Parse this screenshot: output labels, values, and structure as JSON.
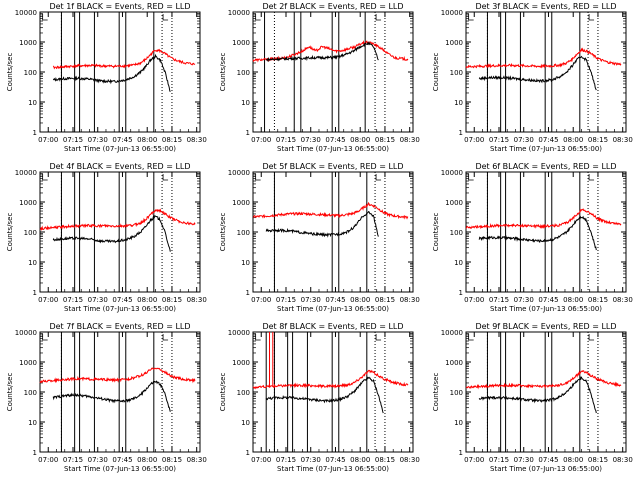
{
  "chart_data": [
    {
      "type": "line",
      "title": "Det 1f BLACK = Events, RED = LLD",
      "xlabel": "Start Time (07-Jun-13 06:55:00)",
      "ylabel": "Counts/sec",
      "ylog": true,
      "ylim": [
        1,
        10000
      ],
      "yticks": [
        "1",
        "10",
        "100",
        "1000",
        "10000"
      ],
      "xticks": [
        "07:00",
        "07:15",
        "07:30",
        "07:45",
        "08:00",
        "08:15",
        "08:30"
      ],
      "xlim_minutes": [
        0,
        97
      ],
      "series": [
        {
          "name": "LLD",
          "color": "#ff0000",
          "x": [
            8,
            15,
            22,
            30,
            37,
            45,
            52,
            57,
            61,
            64,
            67,
            70,
            73,
            76,
            79,
            82,
            85,
            88,
            91,
            94
          ],
          "y": [
            140,
            150,
            160,
            165,
            160,
            155,
            160,
            170,
            200,
            260,
            380,
            550,
            500,
            400,
            300,
            250,
            220,
            200,
            190,
            180
          ]
        },
        {
          "name": "Events",
          "color": "#000000",
          "x": [
            8,
            15,
            22,
            30,
            37,
            45,
            52,
            57,
            61,
            64,
            67,
            70,
            73,
            76,
            79
          ],
          "y": [
            55,
            60,
            62,
            58,
            50,
            48,
            55,
            70,
            100,
            150,
            250,
            330,
            250,
            90,
            22
          ]
        }
      ],
      "solid_lines": [
        13,
        21,
        24,
        33,
        48,
        52,
        69
      ],
      "dotted_lines": [
        13,
        74,
        80
      ]
    },
    {
      "type": "line",
      "title": "Det 2f BLACK = Events, RED = LLD",
      "xlabel": "Start Time (07-Jun-13 06:55:00)",
      "ylabel": "Counts/sec",
      "ylog": true,
      "ylim": [
        1,
        10000
      ],
      "yticks": [
        "1",
        "10",
        "100",
        "1000",
        "10000"
      ],
      "xticks": [
        "07:00",
        "07:15",
        "07:30",
        "07:45",
        "08:00",
        "08:15",
        "08:30"
      ],
      "xlim_minutes": [
        0,
        97
      ],
      "series": [
        {
          "name": "LLD",
          "color": "#ff0000",
          "x": [
            0,
            8,
            15,
            20,
            25,
            30,
            34,
            38,
            42,
            46,
            50,
            54,
            58,
            62,
            66,
            70,
            74,
            78,
            82,
            86,
            90,
            94
          ],
          "y": [
            250,
            260,
            280,
            300,
            380,
            500,
            700,
            500,
            700,
            600,
            500,
            520,
            600,
            700,
            900,
            1000,
            800,
            600,
            400,
            300,
            280,
            260
          ]
        },
        {
          "name": "Events",
          "color": "#000000",
          "x": [
            8,
            15,
            22,
            30,
            37,
            45,
            52,
            57,
            61,
            64,
            67,
            70,
            73,
            76
          ],
          "y": [
            260,
            270,
            280,
            290,
            300,
            300,
            320,
            400,
            500,
            650,
            800,
            900,
            700,
            250
          ]
        }
      ],
      "solid_lines": [
        7,
        25,
        29,
        48,
        52,
        68
      ],
      "dotted_lines": [
        13,
        74,
        80
      ]
    },
    {
      "type": "line",
      "title": "Det 3f BLACK = Events, RED = LLD",
      "xlabel": "Start Time (07-Jun-13 06:55:00)",
      "ylabel": "Counts/sec",
      "ylog": true,
      "ylim": [
        1,
        10000
      ],
      "yticks": [
        "1",
        "10",
        "100",
        "1000",
        "10000"
      ],
      "xticks": [
        "07:00",
        "07:15",
        "07:30",
        "07:45",
        "08:00",
        "08:15",
        "08:30"
      ],
      "xlim_minutes": [
        0,
        97
      ],
      "series": [
        {
          "name": "LLD",
          "color": "#ff0000",
          "x": [
            0,
            8,
            15,
            22,
            30,
            37,
            45,
            52,
            57,
            61,
            64,
            67,
            70,
            73,
            76,
            79,
            82,
            85,
            88,
            91,
            94
          ],
          "y": [
            150,
            155,
            160,
            165,
            165,
            160,
            155,
            160,
            170,
            200,
            260,
            380,
            550,
            500,
            400,
            300,
            250,
            220,
            200,
            190,
            180
          ]
        },
        {
          "name": "Events",
          "color": "#000000",
          "x": [
            8,
            15,
            22,
            30,
            37,
            45,
            52,
            57,
            61,
            64,
            67,
            70,
            73,
            76,
            79
          ],
          "y": [
            60,
            65,
            65,
            60,
            55,
            50,
            55,
            70,
            100,
            150,
            250,
            330,
            250,
            90,
            25
          ]
        }
      ],
      "solid_lines": [
        13,
        21,
        24,
        33,
        48,
        52,
        69
      ],
      "dotted_lines": [
        13,
        74,
        80
      ]
    },
    {
      "type": "line",
      "title": "Det 4f BLACK = Events, RED = LLD",
      "xlabel": "Start Time (07-Jun-13 06:55:00)",
      "ylabel": "Counts/sec",
      "ylog": true,
      "ylim": [
        1,
        10000
      ],
      "yticks": [
        "1",
        "10",
        "100",
        "1000",
        "10000"
      ],
      "xticks": [
        "07:00",
        "07:15",
        "07:30",
        "07:45",
        "08:00",
        "08:15",
        "08:30"
      ],
      "xlim_minutes": [
        0,
        97
      ],
      "series": [
        {
          "name": "LLD",
          "color": "#ff0000",
          "x": [
            0,
            8,
            15,
            22,
            30,
            37,
            45,
            52,
            57,
            61,
            64,
            67,
            70,
            73,
            76,
            79,
            82,
            85,
            88,
            91,
            94
          ],
          "y": [
            130,
            140,
            150,
            160,
            165,
            160,
            155,
            160,
            170,
            200,
            260,
            380,
            550,
            500,
            400,
            300,
            250,
            220,
            200,
            190,
            180
          ]
        },
        {
          "name": "Events",
          "color": "#000000",
          "x": [
            8,
            15,
            22,
            30,
            37,
            45,
            52,
            57,
            61,
            64,
            67,
            70,
            73,
            76,
            79
          ],
          "y": [
            55,
            60,
            62,
            58,
            50,
            48,
            55,
            70,
            100,
            150,
            250,
            330,
            250,
            90,
            22
          ]
        }
      ],
      "solid_lines": [
        13,
        21,
        24,
        33,
        48,
        52,
        69
      ],
      "dotted_lines": [
        13,
        74,
        80
      ]
    },
    {
      "type": "line",
      "title": "Det 5f BLACK = Events, RED = LLD",
      "xlabel": "Start Time (07-Jun-13 06:55:00)",
      "ylabel": "Counts/sec",
      "ylog": true,
      "ylim": [
        1,
        10000
      ],
      "yticks": [
        "1",
        "10",
        "100",
        "1000",
        "10000"
      ],
      "xticks": [
        "07:00",
        "07:15",
        "07:30",
        "07:45",
        "08:00",
        "08:15",
        "08:30"
      ],
      "xlim_minutes": [
        0,
        97
      ],
      "series": [
        {
          "name": "LLD",
          "color": "#ff0000",
          "x": [
            0,
            8,
            15,
            22,
            30,
            37,
            45,
            52,
            57,
            61,
            64,
            67,
            70,
            73,
            76,
            79,
            82,
            85,
            88,
            91,
            94
          ],
          "y": [
            320,
            340,
            370,
            400,
            410,
            390,
            370,
            350,
            380,
            420,
            500,
            650,
            850,
            750,
            600,
            450,
            380,
            350,
            330,
            320,
            310
          ]
        },
        {
          "name": "Events",
          "color": "#000000",
          "x": [
            8,
            15,
            22,
            30,
            37,
            45,
            52,
            57,
            61,
            64,
            67,
            70,
            73,
            76
          ],
          "y": [
            110,
            115,
            110,
            95,
            85,
            80,
            85,
            100,
            140,
            220,
            350,
            450,
            350,
            70
          ]
        }
      ],
      "solid_lines": [
        13,
        48,
        52,
        69
      ],
      "dotted_lines": [
        13,
        74,
        80
      ]
    },
    {
      "type": "line",
      "title": "Det 6f BLACK = Events, RED = LLD",
      "xlabel": "Start Time (07-Jun-13 06:55:00)",
      "ylabel": "Counts/sec",
      "ylog": true,
      "ylim": [
        1,
        10000
      ],
      "yticks": [
        "1",
        "10",
        "100",
        "1000",
        "10000"
      ],
      "xticks": [
        "07:00",
        "07:15",
        "07:30",
        "07:45",
        "08:00",
        "08:15",
        "08:30"
      ],
      "xlim_minutes": [
        0,
        97
      ],
      "series": [
        {
          "name": "LLD",
          "color": "#ff0000",
          "x": [
            0,
            8,
            15,
            22,
            30,
            37,
            45,
            52,
            57,
            61,
            64,
            67,
            70,
            73,
            76,
            79,
            82,
            85,
            88,
            91,
            94
          ],
          "y": [
            140,
            150,
            160,
            165,
            165,
            160,
            155,
            160,
            170,
            200,
            260,
            380,
            550,
            500,
            400,
            300,
            250,
            220,
            200,
            190,
            180
          ]
        },
        {
          "name": "Events",
          "color": "#000000",
          "x": [
            8,
            15,
            22,
            30,
            37,
            45,
            52,
            57,
            61,
            64,
            67,
            70,
            73,
            76,
            79
          ],
          "y": [
            60,
            65,
            65,
            60,
            55,
            50,
            55,
            70,
            100,
            150,
            250,
            330,
            250,
            90,
            25
          ]
        }
      ],
      "solid_lines": [
        13,
        21,
        24,
        33,
        48,
        52,
        69
      ],
      "dotted_lines": [
        13,
        74,
        80
      ]
    },
    {
      "type": "line",
      "title": "Det 7f BLACK = Events, RED = LLD",
      "xlabel": "Start Time (07-Jun-13 06:55:00)",
      "ylabel": "Counts/sec",
      "ylog": true,
      "ylim": [
        1,
        10000
      ],
      "yticks": [
        "1",
        "10",
        "100",
        "1000",
        "10000"
      ],
      "xticks": [
        "07:00",
        "07:15",
        "07:30",
        "07:45",
        "08:00",
        "08:15",
        "08:30"
      ],
      "xlim_minutes": [
        0,
        97
      ],
      "series": [
        {
          "name": "LLD",
          "color": "#ff0000",
          "x": [
            0,
            8,
            15,
            22,
            30,
            37,
            45,
            52,
            57,
            61,
            64,
            67,
            70,
            73,
            76,
            79,
            82,
            85,
            88,
            91,
            94
          ],
          "y": [
            220,
            240,
            260,
            280,
            270,
            260,
            250,
            260,
            300,
            350,
            420,
            550,
            650,
            550,
            450,
            350,
            300,
            280,
            260,
            250,
            240
          ]
        },
        {
          "name": "Events",
          "color": "#000000",
          "x": [
            8,
            15,
            22,
            30,
            37,
            45,
            52,
            57,
            61,
            64,
            67,
            70,
            73,
            76,
            79
          ],
          "y": [
            65,
            75,
            80,
            70,
            60,
            50,
            50,
            60,
            80,
            120,
            180,
            220,
            180,
            80,
            22
          ]
        }
      ],
      "solid_lines": [
        13,
        21,
        24,
        33,
        48,
        52,
        69
      ],
      "dotted_lines": [
        13,
        74,
        80
      ]
    },
    {
      "type": "line",
      "title": "Det 8f BLACK = Events, RED = LLD",
      "xlabel": "Start Time (07-Jun-13 06:55:00)",
      "ylabel": "Counts/sec",
      "ylog": true,
      "ylim": [
        1,
        10000
      ],
      "yticks": [
        "1",
        "10",
        "100",
        "1000",
        "10000"
      ],
      "xticks": [
        "07:00",
        "07:15",
        "07:30",
        "07:45",
        "08:00",
        "08:15",
        "08:30"
      ],
      "xlim_minutes": [
        0,
        97
      ],
      "series": [
        {
          "name": "LLD",
          "color": "#ff0000",
          "x": [
            0,
            8,
            15,
            22,
            30,
            37,
            45,
            52,
            57,
            61,
            64,
            67,
            70,
            73,
            76,
            79,
            82,
            85,
            88,
            91,
            94
          ],
          "y": [
            140,
            150,
            160,
            165,
            165,
            160,
            155,
            160,
            170,
            200,
            260,
            350,
            500,
            450,
            350,
            280,
            240,
            210,
            190,
            180,
            170
          ]
        },
        {
          "name": "Events",
          "color": "#000000",
          "x": [
            8,
            15,
            22,
            30,
            37,
            45,
            52,
            57,
            61,
            64,
            67,
            70,
            73,
            76,
            79
          ],
          "y": [
            60,
            65,
            65,
            60,
            55,
            50,
            55,
            70,
            100,
            150,
            230,
            300,
            230,
            80,
            20
          ]
        }
      ],
      "spike": {
        "x": [
          10,
          12
        ],
        "y": [
          10000,
          10000
        ]
      },
      "solid_lines": [
        8,
        13,
        21,
        24,
        33,
        48,
        52,
        69
      ],
      "dotted_lines": [
        13,
        74,
        80
      ]
    },
    {
      "type": "line",
      "title": "Det 9f BLACK = Events, RED = LLD",
      "xlabel": "Start Time (07-Jun-13 06:55:00)",
      "ylabel": "Counts/sec",
      "ylog": true,
      "ylim": [
        1,
        10000
      ],
      "yticks": [
        "1",
        "10",
        "100",
        "1000",
        "10000"
      ],
      "xticks": [
        "07:00",
        "07:15",
        "07:30",
        "07:45",
        "08:00",
        "08:15",
        "08:30"
      ],
      "xlim_minutes": [
        0,
        97
      ],
      "series": [
        {
          "name": "LLD",
          "color": "#ff0000",
          "x": [
            0,
            8,
            15,
            22,
            30,
            37,
            45,
            52,
            57,
            61,
            64,
            67,
            70,
            73,
            76,
            79,
            82,
            85,
            88,
            91,
            94
          ],
          "y": [
            140,
            150,
            160,
            165,
            165,
            160,
            155,
            160,
            170,
            200,
            260,
            350,
            500,
            450,
            350,
            280,
            240,
            210,
            190,
            180,
            170
          ]
        },
        {
          "name": "Events",
          "color": "#000000",
          "x": [
            8,
            15,
            22,
            30,
            37,
            45,
            52,
            57,
            61,
            64,
            67,
            70,
            73,
            76,
            79
          ],
          "y": [
            60,
            65,
            65,
            60,
            55,
            50,
            55,
            70,
            100,
            150,
            230,
            300,
            230,
            80,
            20
          ]
        }
      ],
      "solid_lines": [
        13,
        21,
        24,
        33,
        48,
        52,
        69
      ],
      "dotted_lines": [
        13,
        74,
        80
      ]
    }
  ]
}
